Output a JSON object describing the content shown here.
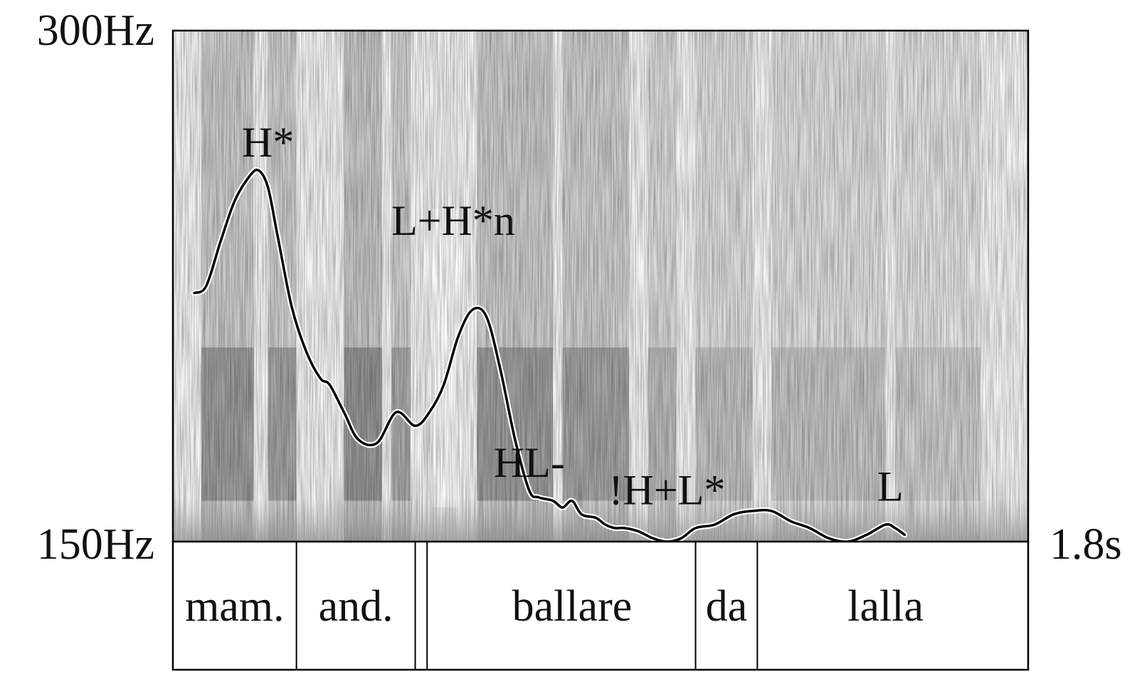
{
  "chart_data": {
    "type": "line",
    "title": "",
    "xlabel": "",
    "ylabel": "",
    "y_top_label": "300Hz",
    "y_bottom_label": "150Hz",
    "x_end_label": "1.8s",
    "xlim": [
      0,
      1.8
    ],
    "ylim": [
      150,
      300
    ],
    "background": "spectrogram",
    "series": [
      {
        "x": [
          0.045,
          0.07,
          0.1,
          0.13,
          0.16,
          0.18,
          0.2,
          0.22,
          0.25,
          0.28,
          0.31,
          0.33,
          0.36,
          0.39,
          0.43,
          0.47,
          0.51,
          0.54,
          0.57,
          0.6,
          0.63,
          0.66,
          0.69,
          0.72,
          0.75,
          0.77,
          0.8,
          0.82,
          0.84,
          0.86,
          0.89,
          0.91,
          0.93,
          0.95,
          0.98,
          1.01,
          1.04,
          1.07,
          1.1,
          1.14,
          1.18,
          1.22,
          1.26,
          1.3,
          1.34,
          1.38,
          1.42,
          1.46,
          1.5,
          1.52,
          1.54
        ],
        "y": [
          223,
          225,
          238,
          250,
          257,
          259,
          254,
          240,
          219,
          206,
          198,
          196,
          188,
          180,
          179,
          188,
          184,
          188,
          196,
          210,
          218,
          216,
          200,
          180,
          165,
          163,
          162,
          160,
          162,
          158,
          157,
          155,
          154,
          154,
          153,
          151,
          150,
          151,
          154,
          155,
          158,
          159,
          159,
          156,
          154,
          151,
          150,
          152,
          155,
          154,
          152
        ]
      }
    ],
    "tone_labels": [
      {
        "text": "H*",
        "x": 0.2,
        "y": 263
      },
      {
        "text": "L+H*n",
        "x": 0.59,
        "y": 240
      },
      {
        "text": "HL-",
        "x": 0.75,
        "y": 169
      },
      {
        "text": "!H+L*",
        "x": 1.04,
        "y": 161
      },
      {
        "text": "L",
        "x": 1.51,
        "y": 162
      }
    ],
    "word_tier": {
      "boundaries": [
        0,
        0.26,
        0.51,
        0.535,
        1.1,
        1.23,
        1.8
      ],
      "labels": [
        {
          "text": "mam.",
          "x": 0.13
        },
        {
          "text": "and.",
          "x": 0.385
        },
        {
          "text": "ballare",
          "x": 0.84
        },
        {
          "text": "da",
          "x": 1.165
        },
        {
          "text": "lalla",
          "x": 1.5
        }
      ]
    }
  }
}
